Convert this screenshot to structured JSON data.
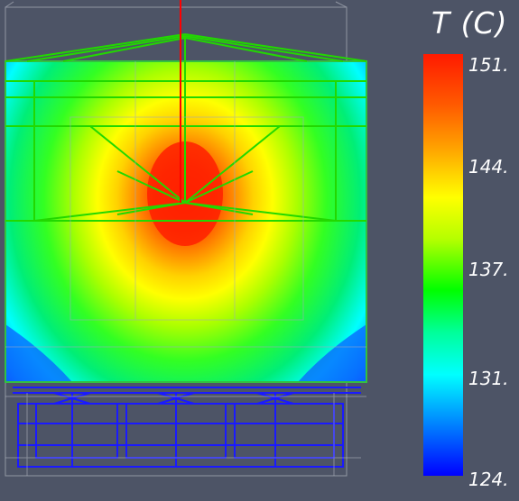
{
  "legend": {
    "title": "T (C)",
    "ticks": [
      "151.",
      "144.",
      "137.",
      "131.",
      "124."
    ],
    "min": 124,
    "max": 151
  },
  "colors": {
    "background": "#4d5466",
    "mesh": "#00dd00",
    "base_frame": "#1a1aff",
    "axis": "#ff0000"
  }
}
